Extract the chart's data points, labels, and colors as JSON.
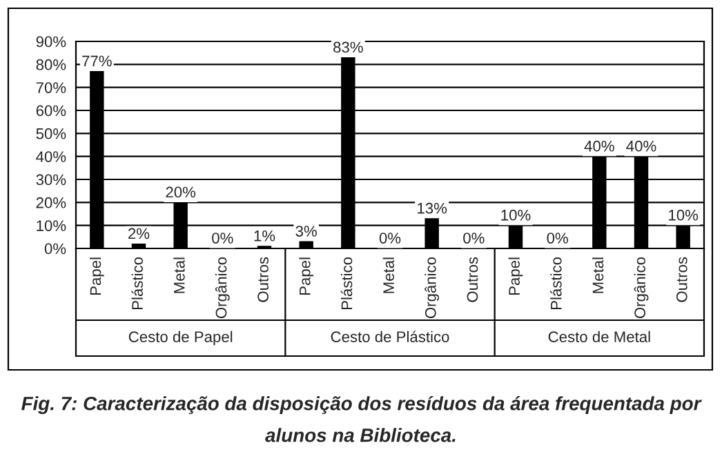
{
  "chart_data": {
    "type": "bar",
    "categories": [
      "Papel",
      "Plástico",
      "Metal",
      "Orgânico",
      "Outros",
      "Papel",
      "Plástico",
      "Metal",
      "Orgânico",
      "Outros",
      "Papel",
      "Plástico",
      "Metal",
      "Orgânico",
      "Outros"
    ],
    "values": [
      77,
      2,
      20,
      0,
      1,
      3,
      83,
      0,
      13,
      0,
      10,
      0,
      40,
      40,
      10
    ],
    "value_labels": [
      "77%",
      "2%",
      "20%",
      "0%",
      "1%",
      "3%",
      "83%",
      "0%",
      "13%",
      "0%",
      "10%",
      "0%",
      "40%",
      "40%",
      "10%"
    ],
    "color": "#000000",
    "ylim": [
      0,
      90
    ],
    "yticks": [
      {
        "value": 0,
        "label": "0%"
      },
      {
        "value": 10,
        "label": "10%"
      },
      {
        "value": 20,
        "label": "20%"
      },
      {
        "value": 30,
        "label": "30%"
      },
      {
        "value": 40,
        "label": "40%"
      },
      {
        "value": 50,
        "label": "50%"
      },
      {
        "value": 60,
        "label": "60%"
      },
      {
        "value": 70,
        "label": "70%"
      },
      {
        "value": 80,
        "label": "80%"
      },
      {
        "value": 90,
        "label": "90%"
      }
    ],
    "grid": "y",
    "legend": false,
    "annotations": [
      "Cesto de Papel",
      "Cesto de Plástico",
      "Cesto de Metal",
      "Fig. 7: Caracterização da disposição dos resíduos da área frequentada por alunos na Biblioteca."
    ]
  }
}
